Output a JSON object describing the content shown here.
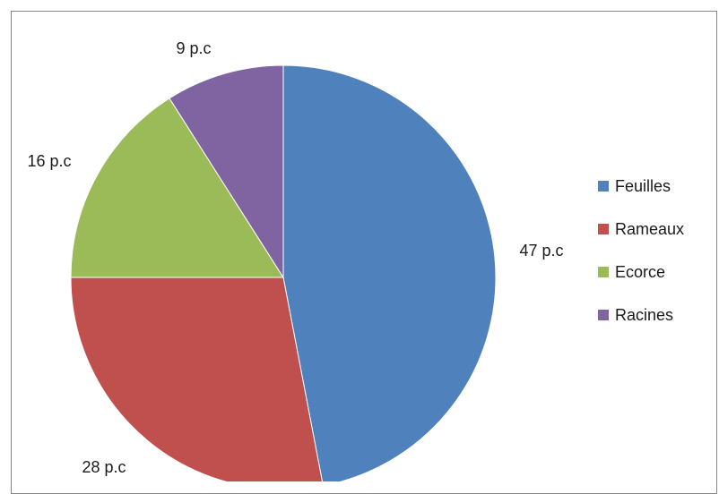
{
  "chart_data": {
    "type": "pie",
    "title": "",
    "categories": [
      "Feuilles",
      "Rameaux",
      "Ecorce",
      "Racines"
    ],
    "values": [
      47,
      28,
      16,
      9
    ],
    "data_labels": [
      "47 p.c",
      "28 p.c",
      "16 p.c",
      "9 p.c"
    ],
    "unit": "p.c",
    "colors": [
      "#4f81bd",
      "#c0504d",
      "#9bbb59",
      "#8064a2"
    ],
    "start_angle_deg": 0,
    "direction": "clockwise",
    "legend": {
      "placement": "right",
      "entries": [
        "Feuilles",
        "Rameaux",
        "Ecorce",
        "Racines"
      ]
    }
  }
}
